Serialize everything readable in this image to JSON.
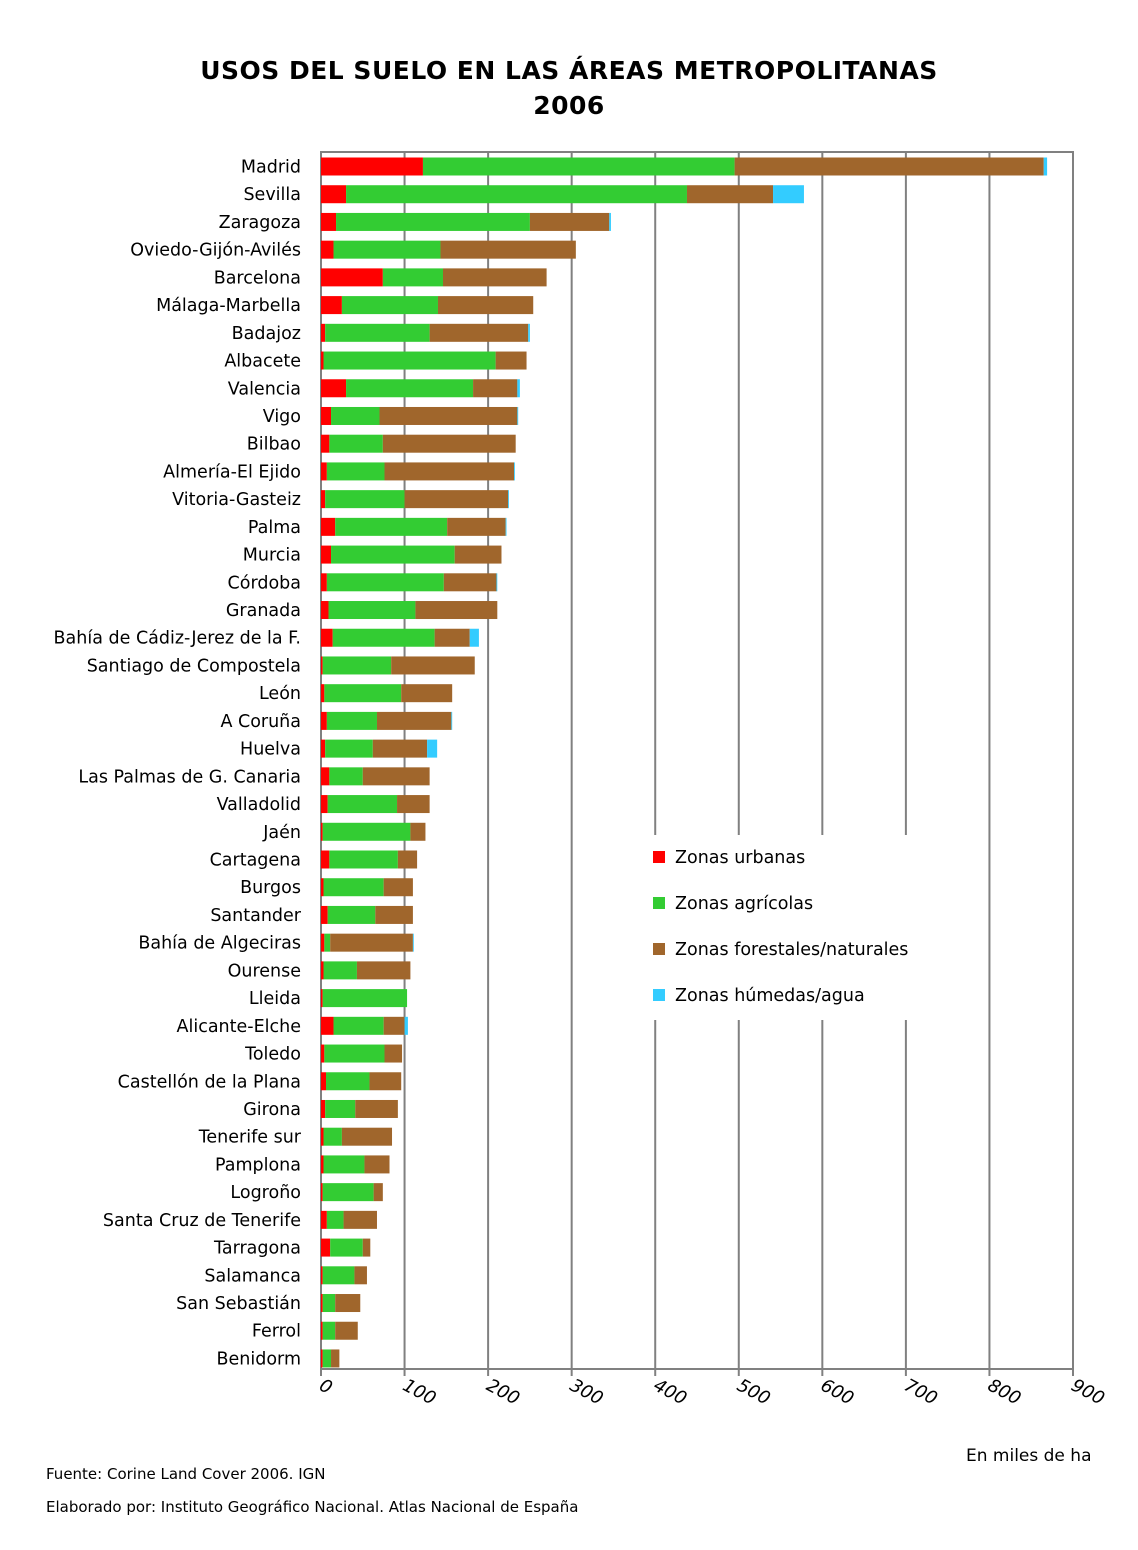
{
  "chart_data": {
    "type": "bar",
    "orientation": "horizontal",
    "stacked": true,
    "title": "USOS DEL SUELO EN LAS ÁREAS METROPOLITANAS",
    "subtitle": "2006",
    "xlabel": "En miles de ha",
    "xlim": [
      0,
      900
    ],
    "xticks": [
      "0",
      "100",
      "200",
      "300",
      "400",
      "500",
      "600",
      "700",
      "800",
      "900"
    ],
    "grid": true,
    "legend_position": "right",
    "categories": [
      "Madrid",
      "Sevilla",
      "Zaragoza",
      "Oviedo-Gijón-Avilés",
      "Barcelona",
      "Málaga-Marbella",
      "Badajoz",
      "Albacete",
      "Valencia",
      "Vigo",
      "Bilbao",
      "Almería-El Ejido",
      "Vitoria-Gasteiz",
      "Palma",
      "Murcia",
      "Córdoba",
      "Granada",
      "Bahía de Cádiz-Jerez de la F.",
      "Santiago de Compostela",
      "León",
      "A Coruña",
      "Huelva",
      "Las Palmas de G. Canaria",
      "Valladolid",
      "Jaén",
      "Cartagena",
      "Burgos",
      "Santander",
      "Bahía de Algeciras",
      "Ourense",
      "Lleida",
      "Alicante-Elche",
      "Toledo",
      "Castellón de la Plana",
      "Girona",
      "Tenerife sur",
      "Pamplona",
      "Logroño",
      "Santa Cruz de Tenerife",
      "Tarragona",
      "Salamanca",
      "San Sebastián",
      "Ferrol",
      "Benidorm"
    ],
    "series": [
      {
        "name": "Zonas urbanas",
        "color": "#ff0000",
        "values": [
          122,
          30,
          18,
          15,
          74,
          25,
          5,
          3,
          30,
          12,
          10,
          7,
          5,
          17,
          12,
          7,
          9,
          14,
          2,
          4,
          7,
          5,
          10,
          8,
          2,
          10,
          3,
          8,
          4,
          3,
          2,
          15,
          4,
          6,
          5,
          3,
          3,
          2,
          7,
          11,
          2,
          2,
          2,
          2
        ]
      },
      {
        "name": "Zonas agrícolas",
        "color": "#33cc33",
        "values": [
          373,
          408,
          232,
          128,
          72,
          115,
          125,
          206,
          152,
          58,
          64,
          69,
          95,
          134,
          148,
          140,
          104,
          122,
          82,
          92,
          60,
          57,
          40,
          83,
          105,
          82,
          72,
          57,
          7,
          40,
          101,
          60,
          72,
          52,
          36,
          22,
          49,
          61,
          20,
          39,
          38,
          15,
          15,
          10
        ]
      },
      {
        "name": "Zonas forestales/naturales",
        "color": "#a0662c",
        "values": [
          370,
          103,
          95,
          162,
          124,
          114,
          118,
          37,
          53,
          165,
          159,
          155,
          124,
          70,
          56,
          63,
          98,
          42,
          100,
          61,
          89,
          65,
          80,
          39,
          18,
          23,
          35,
          45,
          99,
          64,
          0,
          25,
          21,
          38,
          51,
          60,
          30,
          11,
          40,
          9,
          15,
          30,
          27,
          10
        ]
      },
      {
        "name": "Zonas húmedas/agua",
        "color": "#33ccff",
        "values": [
          4,
          37,
          2,
          0,
          0,
          0,
          2,
          0,
          3,
          1,
          0,
          1,
          1,
          1,
          0,
          1,
          0,
          11,
          0,
          0,
          1,
          12,
          0,
          0,
          0,
          0,
          0,
          0,
          1,
          0,
          0,
          4,
          0,
          0,
          0,
          0,
          0,
          0,
          0,
          0,
          0,
          0,
          0,
          0
        ]
      }
    ]
  },
  "footer": {
    "source": "Fuente: Corine Land Cover 2006. IGN",
    "credit": "Elaborado por: Instituto Geográfico Nacional. Atlas Nacional de España"
  }
}
